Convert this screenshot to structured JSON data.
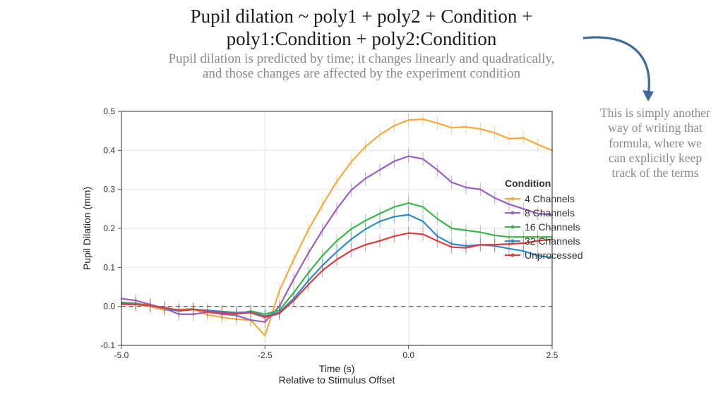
{
  "title_line1": "Pupil dilation ~ poly1 + poly2 + Condition +",
  "title_line2": "poly1:Condition + poly2:Condition",
  "subtitle_line1": "Pupil dilation is predicted by time; it changes linearly and quadratically,",
  "subtitle_line2": "and those changes are affected by the experiment condition",
  "annotation_text": "This is simply another way of writing that formula, where we can explicitly keep track of the terms",
  "arrow_color": "#3b6a98",
  "chart": {
    "type": "line",
    "plot_bg": "#ffffff",
    "panel_border": "#4d4d4d",
    "grid_color": "#e6e6e6",
    "zero_line_color": "#4d4d4d",
    "axis_title_fontsize": 14,
    "tick_fontsize": 12,
    "font_family": "Arial, Helvetica, sans-serif",
    "xlabel": "Time (s)",
    "xlabel_sub": "Relative to Stimulus Offset",
    "ylabel": "Pupil Dilation (mm)",
    "xlim": [
      -5.0,
      2.5
    ],
    "ylim": [
      -0.1,
      0.5
    ],
    "xticks": [
      -5.0,
      -2.5,
      0.0,
      2.5
    ],
    "yticks": [
      -0.1,
      0.0,
      0.1,
      0.2,
      0.3,
      0.4,
      0.5
    ],
    "line_width": 2.2,
    "error_bar_half": 0.017,
    "error_bar_width": 1,
    "error_bar_opacity": 0.55,
    "x_values": [
      -5.0,
      -4.75,
      -4.5,
      -4.25,
      -4.0,
      -3.75,
      -3.5,
      -3.25,
      -3.0,
      -2.75,
      -2.5,
      -2.25,
      -2.0,
      -1.75,
      -1.5,
      -1.25,
      -1.0,
      -0.75,
      -0.5,
      -0.25,
      0.0,
      0.25,
      0.5,
      0.75,
      1.0,
      1.25,
      1.5,
      1.75,
      2.0,
      2.25,
      2.5
    ],
    "legend_title": "Condition",
    "series": [
      {
        "name": "4 Channels",
        "color": "#f7a93b",
        "y": [
          0.005,
          0.005,
          0.0,
          -0.01,
          -0.008,
          -0.006,
          -0.022,
          -0.028,
          -0.033,
          -0.035,
          -0.075,
          0.04,
          0.12,
          0.195,
          0.26,
          0.32,
          0.37,
          0.41,
          0.44,
          0.463,
          0.478,
          0.48,
          0.47,
          0.458,
          0.46,
          0.455,
          0.445,
          0.43,
          0.432,
          0.415,
          0.4
        ]
      },
      {
        "name": "8 Channels",
        "color": "#9b5fc0",
        "y": [
          0.02,
          0.015,
          0.005,
          -0.005,
          -0.02,
          -0.02,
          -0.015,
          -0.02,
          -0.023,
          -0.035,
          -0.04,
          0.0,
          0.07,
          0.135,
          0.195,
          0.25,
          0.298,
          0.328,
          0.35,
          0.372,
          0.385,
          0.378,
          0.35,
          0.318,
          0.305,
          0.3,
          0.278,
          0.262,
          0.25,
          0.238,
          0.235
        ]
      },
      {
        "name": "16 Channels",
        "color": "#3bb54a",
        "y": [
          0.01,
          0.008,
          0.002,
          -0.005,
          -0.01,
          -0.007,
          -0.012,
          -0.015,
          -0.02,
          -0.012,
          -0.02,
          -0.01,
          0.035,
          0.085,
          0.13,
          0.168,
          0.198,
          0.22,
          0.238,
          0.255,
          0.265,
          0.255,
          0.225,
          0.2,
          0.195,
          0.19,
          0.182,
          0.178,
          0.178,
          0.178,
          0.178
        ]
      },
      {
        "name": "32 Channels",
        "color": "#2e8acb",
        "y": [
          0.008,
          0.005,
          0.002,
          -0.005,
          -0.012,
          -0.008,
          -0.01,
          -0.013,
          -0.016,
          -0.014,
          -0.025,
          -0.015,
          0.02,
          0.065,
          0.105,
          0.14,
          0.172,
          0.198,
          0.218,
          0.23,
          0.235,
          0.218,
          0.18,
          0.16,
          0.155,
          0.158,
          0.155,
          0.148,
          0.142,
          0.13,
          0.125
        ]
      },
      {
        "name": "Unprocessed",
        "color": "#e03a3a",
        "y": [
          0.006,
          0.005,
          0.002,
          -0.003,
          -0.01,
          -0.008,
          -0.013,
          -0.017,
          -0.018,
          -0.016,
          -0.028,
          -0.018,
          0.015,
          0.055,
          0.092,
          0.12,
          0.143,
          0.158,
          0.168,
          0.18,
          0.188,
          0.185,
          0.168,
          0.152,
          0.15,
          0.158,
          0.158,
          0.16,
          0.162,
          0.168,
          0.172
        ]
      }
    ]
  }
}
